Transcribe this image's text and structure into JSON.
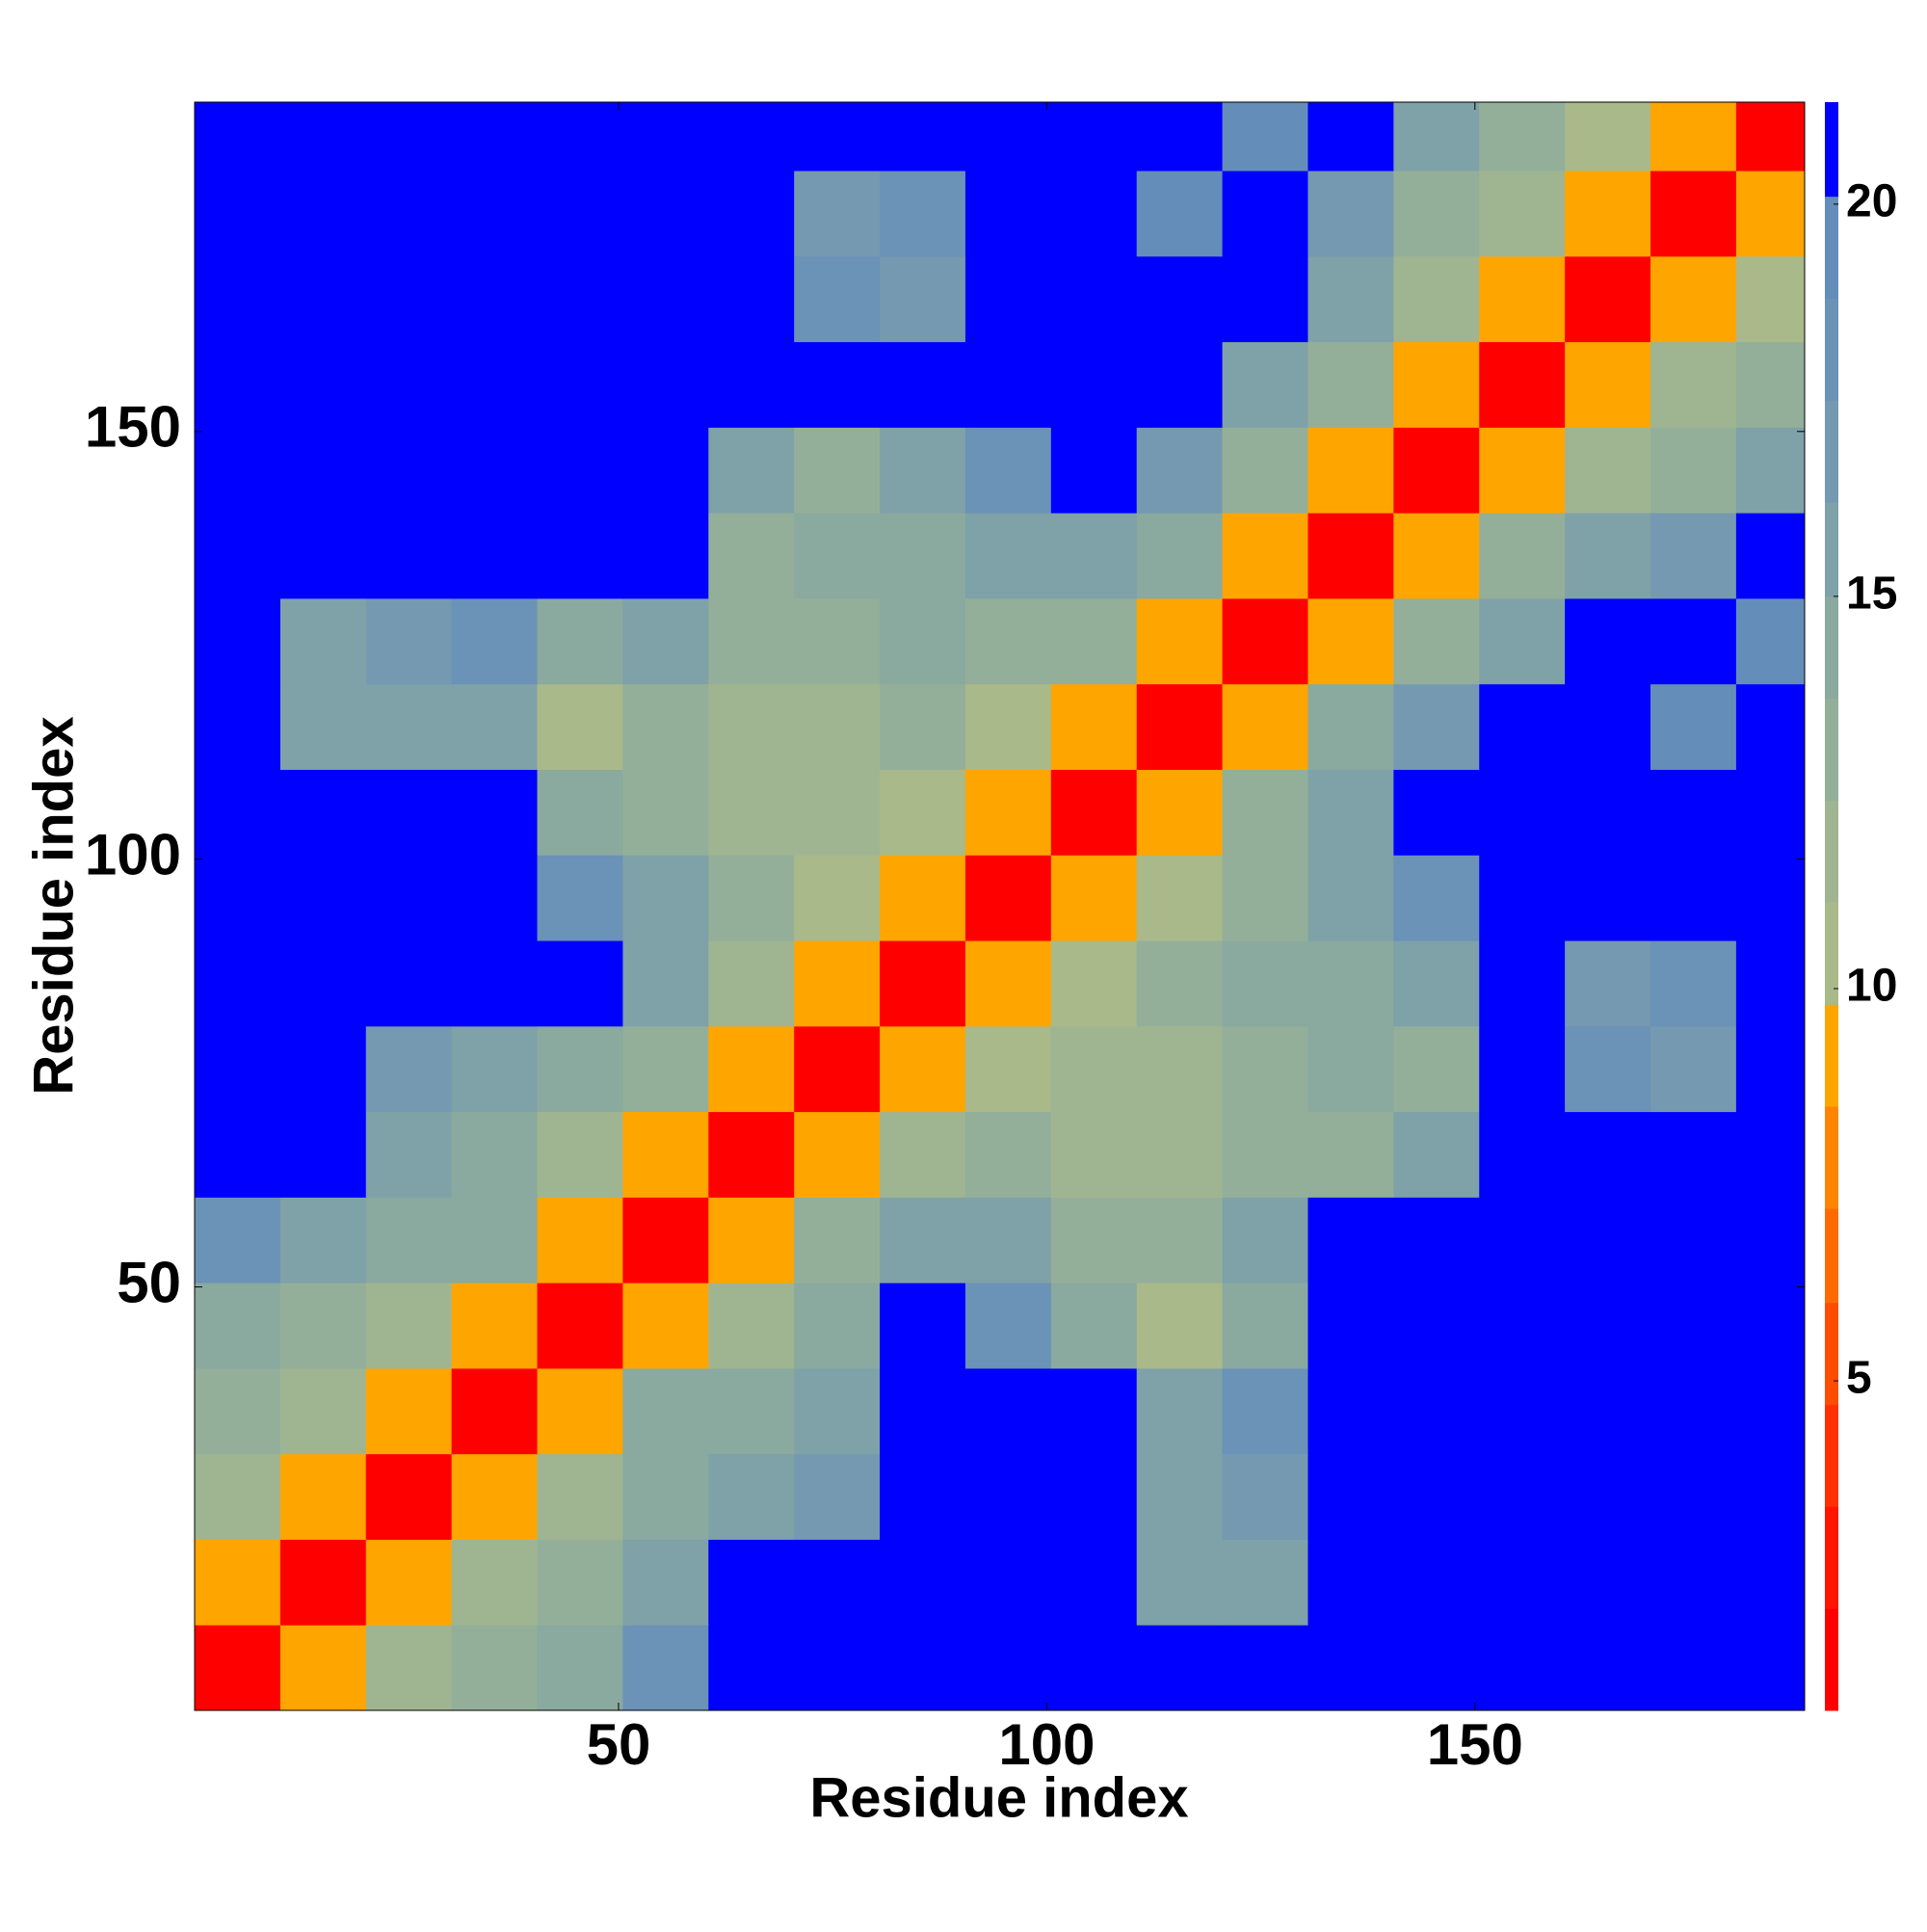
{
  "chart_data": {
    "type": "heatmap",
    "xlabel": "Residue index",
    "ylabel": "Residue index",
    "xlim": [
      0.5,
      188.5
    ],
    "ylim": [
      0.5,
      188.5
    ],
    "xticks": [
      50,
      100,
      150
    ],
    "yticks": [
      50,
      100,
      150
    ],
    "x_edges": [
      0.5,
      10.5,
      20.5,
      30.5,
      40.5,
      50.5,
      60.5,
      70.5,
      80.5,
      90.5,
      100.5,
      110.5,
      120.5,
      130.5,
      140.5,
      150.5,
      160.5,
      170.5,
      180.5,
      188.5
    ],
    "y_edges": [
      0.5,
      10.5,
      20.5,
      30.5,
      40.5,
      50.5,
      60.5,
      70.5,
      80.5,
      90.5,
      100.5,
      110.5,
      120.5,
      130.5,
      140.5,
      150.5,
      160.5,
      170.5,
      180.5,
      188.5
    ],
    "z": [
      [
        2,
        9,
        12,
        13,
        14,
        18,
        22,
        22,
        22,
        22,
        22,
        22,
        22,
        22,
        22,
        22,
        22,
        22,
        22
      ],
      [
        9,
        2,
        9,
        12,
        13,
        16,
        22,
        22,
        22,
        22,
        22,
        15,
        16,
        22,
        22,
        22,
        22,
        22,
        22
      ],
      [
        12,
        9,
        2,
        9,
        12,
        14,
        15,
        17,
        22,
        22,
        22,
        15,
        17,
        22,
        22,
        22,
        22,
        22,
        22
      ],
      [
        13,
        12,
        9,
        2,
        9,
        14,
        14,
        16,
        22,
        22,
        22,
        15,
        18,
        22,
        22,
        22,
        22,
        22,
        22
      ],
      [
        14,
        13,
        12,
        9,
        2,
        9,
        12,
        14,
        22,
        18,
        14,
        11,
        14,
        22,
        22,
        22,
        22,
        22,
        22
      ],
      [
        18,
        16,
        14,
        14,
        9,
        2,
        9,
        13,
        15,
        15,
        13,
        13,
        16,
        22,
        22,
        22,
        22,
        22,
        22
      ],
      [
        22,
        22,
        15,
        14,
        12,
        9,
        2,
        9,
        12,
        13,
        12,
        12,
        13,
        13,
        15,
        22,
        22,
        22,
        22
      ],
      [
        22,
        22,
        17,
        16,
        14,
        13,
        9,
        2,
        9,
        11,
        12,
        12,
        13,
        14,
        13,
        22,
        18,
        17,
        22
      ],
      [
        22,
        22,
        22,
        22,
        22,
        15,
        12,
        9,
        2,
        9,
        10,
        13,
        14,
        14,
        15,
        22,
        17,
        18,
        22
      ],
      [
        22,
        22,
        22,
        22,
        18,
        15,
        13,
        11,
        9,
        2,
        9,
        11,
        13,
        16,
        18,
        22,
        22,
        22,
        22
      ],
      [
        22,
        22,
        22,
        22,
        14,
        13,
        12,
        12,
        10,
        9,
        2,
        9,
        13,
        15,
        22,
        22,
        22,
        22,
        22
      ],
      [
        22,
        15,
        15,
        15,
        11,
        13,
        12,
        12,
        13,
        11,
        9,
        2,
        9,
        14,
        17,
        22,
        22,
        20,
        22
      ],
      [
        22,
        16,
        17,
        18,
        14,
        16,
        13,
        13,
        14,
        13,
        13,
        9,
        2,
        9,
        13,
        16,
        22,
        22,
        19
      ],
      [
        22,
        22,
        22,
        22,
        22,
        22,
        13,
        14,
        14,
        16,
        15,
        14,
        9,
        2,
        9,
        13,
        15,
        17,
        22
      ],
      [
        22,
        22,
        22,
        22,
        22,
        22,
        15,
        13,
        15,
        18,
        22,
        17,
        13,
        9,
        2,
        9,
        12,
        13,
        15
      ],
      [
        22,
        22,
        22,
        22,
        22,
        22,
        22,
        22,
        22,
        22,
        22,
        22,
        16,
        13,
        9,
        2,
        9,
        12,
        13
      ],
      [
        22,
        22,
        22,
        22,
        22,
        22,
        22,
        18,
        17,
        22,
        22,
        22,
        22,
        15,
        12,
        9,
        2,
        9,
        11
      ],
      [
        22,
        22,
        22,
        22,
        22,
        22,
        22,
        17,
        18,
        22,
        22,
        20,
        22,
        17,
        13,
        12,
        9,
        2,
        9
      ],
      [
        22,
        22,
        22,
        22,
        22,
        22,
        22,
        22,
        22,
        22,
        22,
        22,
        19,
        22,
        15,
        13,
        11,
        9,
        2
      ]
    ],
    "zlim": [
      0.8,
      21.3
    ],
    "zticks": [
      5,
      10,
      15,
      20
    ],
    "color_levels": [
      0.8,
      2.1,
      3.4,
      4.7,
      6.0,
      7.2,
      8.5,
      9.8,
      11.1,
      12.4,
      13.7,
      15.0,
      16.2,
      17.5,
      18.8,
      20.1,
      21.3
    ],
    "colors": [
      "#ff0000",
      "#ff1500",
      "#ff3000",
      "#ff4d00",
      "#ff6a00",
      "#ff8500",
      "#ffa500",
      "#a9b98a",
      "#9fb592",
      "#94af99",
      "#8aa99f",
      "#7fa1a8",
      "#7599b0",
      "#6b92b7",
      "#658db9",
      "#0000ff"
    ]
  }
}
